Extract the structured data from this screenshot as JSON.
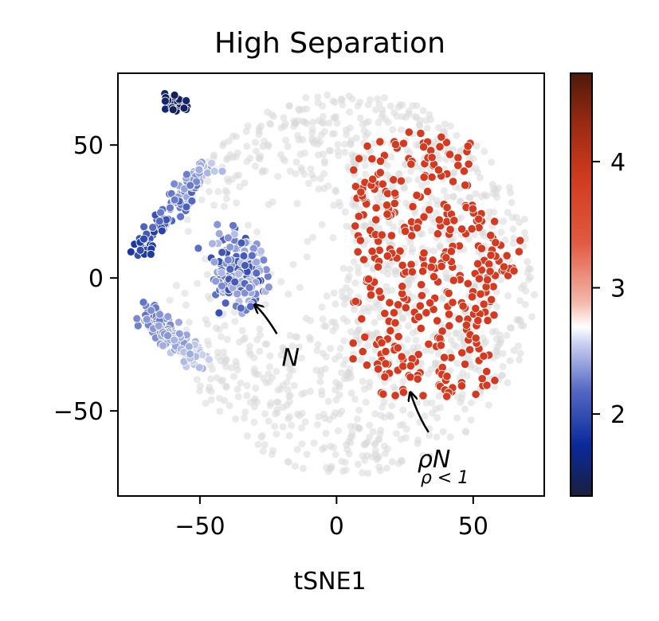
{
  "chart_data": {
    "type": "scatter",
    "title": "High Separation",
    "xlabel": "tSNE1",
    "ylabel": "",
    "xlim": [
      -80,
      76
    ],
    "ylim": [
      -82,
      77
    ],
    "xticks": [
      -50,
      0,
      50
    ],
    "yticks": [
      -50,
      0,
      50
    ],
    "xtick_labels": [
      "−50",
      "0",
      "50"
    ],
    "ytick_labels": [
      "−50",
      "0",
      "50"
    ],
    "grid": false,
    "colorbar": {
      "range": [
        1.35,
        4.7
      ],
      "ticks": [
        2,
        3,
        4
      ],
      "tick_labels": [
        "2",
        "3",
        "4"
      ],
      "colors": [
        {
          "t": 0.0,
          "c": "#1a1f3d"
        },
        {
          "t": 0.12,
          "c": "#0a2a9a"
        },
        {
          "t": 0.25,
          "c": "#5468c4"
        },
        {
          "t": 0.36,
          "c": "#c9cff0"
        },
        {
          "t": 0.4,
          "c": "#ffffff"
        },
        {
          "t": 0.46,
          "c": "#f4b6a8"
        },
        {
          "t": 0.6,
          "c": "#e05a40"
        },
        {
          "t": 0.75,
          "c": "#d13b1f"
        },
        {
          "t": 0.88,
          "c": "#9a2a12"
        },
        {
          "t": 1.0,
          "c": "#4e1a0a"
        }
      ]
    },
    "background_color": "#d9d9d9",
    "high_color": "#d53a20",
    "regions": {
      "background_cloud": {
        "center": [
          5,
          -2
        ],
        "radius": [
          68,
          72
        ],
        "n": 1400
      },
      "high_group": {
        "x_range": [
          6,
          68
        ],
        "y_range": [
          -45,
          55
        ],
        "value": 3.95
      },
      "dark_cluster": {
        "center": [
          -59,
          66
        ],
        "radius": [
          4,
          3
        ],
        "value": 1.45
      },
      "left_arc_top": {
        "from": [
          -72,
          10
        ],
        "to": [
          -46,
          44
        ],
        "value_range": [
          1.8,
          2.6
        ]
      },
      "center_cluster": {
        "center": [
          -36,
          2
        ],
        "radius": [
          12,
          14
        ],
        "value_range": [
          2.0,
          2.5
        ]
      },
      "left_arc_bottom": {
        "from": [
          -70,
          -12
        ],
        "to": [
          -50,
          -32
        ],
        "value_range": [
          2.2,
          2.6
        ]
      }
    },
    "annotations": [
      {
        "text": "N",
        "at": [
          -30,
          -10
        ],
        "text_at": [
          -16,
          -30
        ]
      },
      {
        "text": "ρN",
        "subscript": "ρ < 1",
        "at": [
          27,
          -43
        ],
        "text_at": [
          36,
          -70
        ]
      }
    ]
  }
}
